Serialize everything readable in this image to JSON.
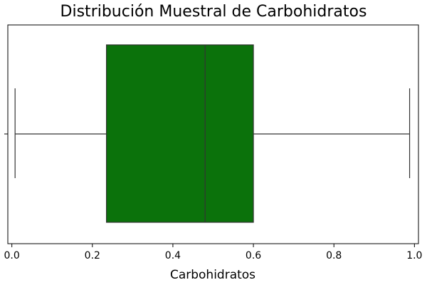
{
  "chart_data": {
    "type": "boxplot",
    "orientation": "horizontal",
    "title": "Distribución Muestral de Carbohidratos",
    "xlabel": "Carbohidratos",
    "ylabel": "",
    "xlim": [
      -0.01,
      1.01
    ],
    "xticks": [
      0.0,
      0.2,
      0.4,
      0.6,
      0.8,
      1.0
    ],
    "xtick_labels": [
      "0.0",
      "0.2",
      "0.4",
      "0.6",
      "0.8",
      "1.0"
    ],
    "box": {
      "min": 0.008,
      "q1": 0.235,
      "median": 0.48,
      "q3": 0.6,
      "max": 0.988
    },
    "color": "#0b720b",
    "grid": false
  }
}
